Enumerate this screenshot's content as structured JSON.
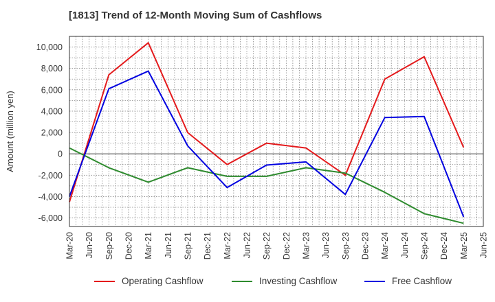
{
  "chart_data": {
    "type": "line",
    "title": "[1813]  Trend of 12-Month Moving Sum of Cashflows",
    "xlabel": "",
    "ylabel": "Amount (million yen)",
    "categories": [
      "Mar-20",
      "Jun-20",
      "Sep-20",
      "Dec-20",
      "Mar-21",
      "Jun-21",
      "Sep-21",
      "Dec-21",
      "Mar-22",
      "Jun-22",
      "Sep-22",
      "Dec-22",
      "Mar-23",
      "Jun-23",
      "Sep-23",
      "Dec-23",
      "Mar-24",
      "Jun-24",
      "Sep-24",
      "Dec-24",
      "Mar-25",
      "Jun-25"
    ],
    "ylim": [
      -6800,
      11000
    ],
    "yticks": [
      -6000,
      -4000,
      -2000,
      0,
      2000,
      4000,
      6000,
      8000,
      10000
    ],
    "ytick_labels": [
      "-6,000",
      "-4,000",
      "-2,000",
      "0",
      "2,000",
      "4,000",
      "6,000",
      "8,000",
      "10,000"
    ],
    "grid": true,
    "legend_position": "bottom",
    "series": [
      {
        "name": "Operating Cashflow",
        "color": "#e41a1c",
        "values": [
          -4500,
          null,
          7400,
          null,
          10400,
          null,
          2000,
          null,
          -1000,
          null,
          1000,
          null,
          550,
          null,
          -2000,
          null,
          7000,
          null,
          9100,
          null,
          600,
          null
        ]
      },
      {
        "name": "Investing Cashflow",
        "color": "#2e8b2e",
        "values": [
          550,
          null,
          -1300,
          null,
          -2650,
          null,
          -1300,
          null,
          -2100,
          null,
          -2100,
          null,
          -1300,
          null,
          -1800,
          null,
          -3600,
          null,
          -5600,
          null,
          -6500,
          null
        ]
      },
      {
        "name": "Free Cashflow",
        "color": "#0000e0",
        "values": [
          -4000,
          null,
          6100,
          null,
          7750,
          null,
          750,
          null,
          -3150,
          null,
          -1050,
          null,
          -750,
          null,
          -3800,
          null,
          3400,
          null,
          3500,
          null,
          -5900,
          null
        ]
      }
    ]
  }
}
